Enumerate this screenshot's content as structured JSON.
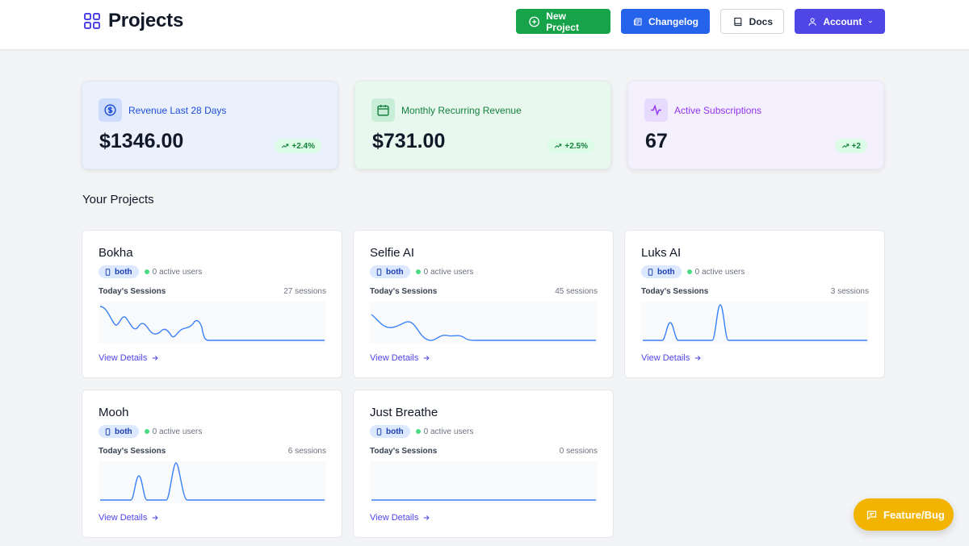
{
  "header": {
    "title": "Projects",
    "logo_icon": "grid-icon",
    "buttons": [
      {
        "label": "New Project",
        "icon": "plus-circle-icon",
        "color": "#16a34a"
      },
      {
        "label": "Changelog",
        "icon": "newspaper-icon",
        "color": "#2563eb"
      },
      {
        "label": "Docs",
        "icon": "book-icon",
        "color": "#ffffff"
      },
      {
        "label": "Account",
        "icon": "user-icon",
        "color": "#4f46e5"
      }
    ]
  },
  "stats": [
    {
      "label": "Revenue Last 28 Days",
      "value": "$1346.00",
      "delta": "+2.4%",
      "icon": "dollar-circle-icon",
      "accent": "#1d4ed8"
    },
    {
      "label": "Monthly Recurring Revenue",
      "value": "$731.00",
      "delta": "+2.5%",
      "icon": "calendar-icon",
      "accent": "#15803d"
    },
    {
      "label": "Active Subscriptions",
      "value": "67",
      "delta": "+2",
      "icon": "activity-icon",
      "accent": "#9333ea"
    }
  ],
  "section_title": "Your Projects",
  "projects": [
    {
      "name": "Bokha",
      "platform": "both",
      "active_users": "0 active users",
      "sessions_label": "Today's Sessions",
      "sessions": "27 sessions",
      "link": "View Details"
    },
    {
      "name": "Selfie AI",
      "platform": "both",
      "active_users": "0 active users",
      "sessions_label": "Today's Sessions",
      "sessions": "45 sessions",
      "link": "View Details"
    },
    {
      "name": "Luks AI",
      "platform": "both",
      "active_users": "0 active users",
      "sessions_label": "Today's Sessions",
      "sessions": "3 sessions",
      "link": "View Details"
    },
    {
      "name": "Mooh",
      "platform": "both",
      "active_users": "0 active users",
      "sessions_label": "Today's Sessions",
      "sessions": "6 sessions",
      "link": "View Details"
    },
    {
      "name": "Just Breathe",
      "platform": "both",
      "active_users": "0 active users",
      "sessions_label": "Today's Sessions",
      "sessions": "0 sessions",
      "link": "View Details"
    }
  ],
  "feedback_button": {
    "label": "Feature/Bug",
    "icon": "chat-icon",
    "color": "#f2b400"
  }
}
